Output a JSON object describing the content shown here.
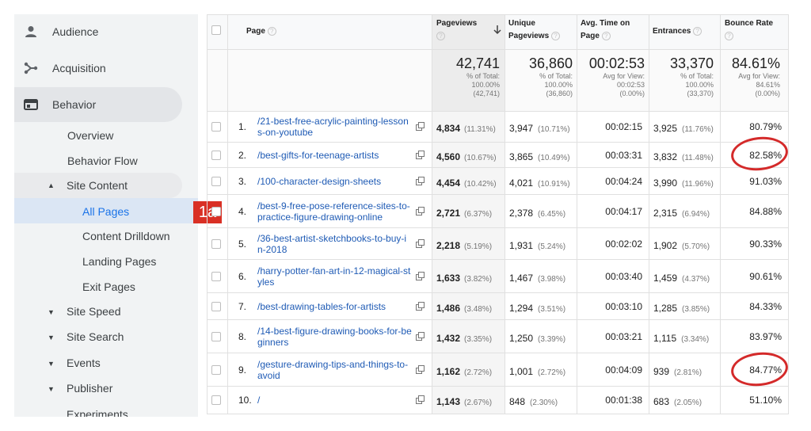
{
  "sidebar": {
    "top_items": [
      {
        "label": "Audience",
        "icon": "person-icon"
      },
      {
        "label": "Acquisition",
        "icon": "acquisition-icon"
      },
      {
        "label": "Behavior",
        "icon": "behavior-icon"
      }
    ],
    "behavior_children": {
      "overview": "Overview",
      "behavior_flow": "Behavior Flow",
      "site_content": "Site Content",
      "site_content_children": [
        "All Pages",
        "Content Drilldown",
        "Landing Pages",
        "Exit Pages"
      ],
      "site_speed": "Site Speed",
      "site_search": "Site Search",
      "events": "Events",
      "publisher": "Publisher",
      "experiments": "Experiments"
    }
  },
  "badge": "1a",
  "table": {
    "headers": {
      "page": "Page",
      "pageviews": "Pageviews",
      "unique_1": "Unique",
      "unique_2": "Pageviews",
      "avg_1": "Avg. Time on",
      "avg_2": "Page",
      "entrances": "Entrances",
      "bounce": "Bounce Rate"
    },
    "totals": {
      "pageviews": {
        "value": "42,741",
        "l1": "% of Total:",
        "l2": "100.00%",
        "l3": "(42,741)"
      },
      "unique": {
        "value": "36,860",
        "l1": "% of Total:",
        "l2": "100.00%",
        "l3": "(36,860)"
      },
      "avg": {
        "value": "00:02:53",
        "l1": "Avg for View:",
        "l2": "00:02:53",
        "l3": "(0.00%)"
      },
      "entrances": {
        "value": "33,370",
        "l1": "% of Total:",
        "l2": "100.00%",
        "l3": "(33,370)"
      },
      "bounce": {
        "value": "84.61%",
        "l1": "Avg for View:",
        "l2": "84.61%",
        "l3": "(0.00%)"
      }
    },
    "rows": [
      {
        "n": "1.",
        "page": "/21-best-free-acrylic-painting-lesson",
        "page2": "s-on-youtube",
        "pv": "4,834",
        "pvp": "(11.31%)",
        "uv": "3,947",
        "uvp": "(10.71%)",
        "avg": "00:02:15",
        "en": "3,925",
        "enp": "(11.76%)",
        "br": "80.79%"
      },
      {
        "n": "2.",
        "page": "/best-gifts-for-teenage-artists",
        "page2": "",
        "pv": "4,560",
        "pvp": "(10.67%)",
        "uv": "3,865",
        "uvp": "(10.49%)",
        "avg": "00:03:31",
        "en": "3,832",
        "enp": "(11.48%)",
        "br": "82.58%"
      },
      {
        "n": "3.",
        "page": "/100-character-design-sheets",
        "page2": "",
        "pv": "4,454",
        "pvp": "(10.42%)",
        "uv": "4,021",
        "uvp": "(10.91%)",
        "avg": "00:04:24",
        "en": "3,990",
        "enp": "(11.96%)",
        "br": "91.03%"
      },
      {
        "n": "4.",
        "page": "/best-9-free-pose-reference-sites-to-",
        "page2": "practice-figure-drawing-online",
        "pv": "2,721",
        "pvp": "(6.37%)",
        "uv": "2,378",
        "uvp": "(6.45%)",
        "avg": "00:04:17",
        "en": "2,315",
        "enp": "(6.94%)",
        "br": "84.88%"
      },
      {
        "n": "5.",
        "page": "/36-best-artist-sketchbooks-to-buy-i",
        "page2": "n-2018",
        "pv": "2,218",
        "pvp": "(5.19%)",
        "uv": "1,931",
        "uvp": "(5.24%)",
        "avg": "00:02:02",
        "en": "1,902",
        "enp": "(5.70%)",
        "br": "90.33%"
      },
      {
        "n": "6.",
        "page": "/harry-potter-fan-art-in-12-magical-st",
        "page2": "yles",
        "pv": "1,633",
        "pvp": "(3.82%)",
        "uv": "1,467",
        "uvp": "(3.98%)",
        "avg": "00:03:40",
        "en": "1,459",
        "enp": "(4.37%)",
        "br": "90.61%"
      },
      {
        "n": "7.",
        "page": "/best-drawing-tables-for-artists",
        "page2": "",
        "pv": "1,486",
        "pvp": "(3.48%)",
        "uv": "1,294",
        "uvp": "(3.51%)",
        "avg": "00:03:10",
        "en": "1,285",
        "enp": "(3.85%)",
        "br": "84.33%"
      },
      {
        "n": "8.",
        "page": "/14-best-figure-drawing-books-for-be",
        "page2": "ginners",
        "pv": "1,432",
        "pvp": "(3.35%)",
        "uv": "1,250",
        "uvp": "(3.39%)",
        "avg": "00:03:21",
        "en": "1,115",
        "enp": "(3.34%)",
        "br": "83.97%"
      },
      {
        "n": "9.",
        "page": "/gesture-drawing-tips-and-things-to-",
        "page2": "avoid",
        "pv": "1,162",
        "pvp": "(2.72%)",
        "uv": "1,001",
        "uvp": "(2.72%)",
        "avg": "00:04:09",
        "en": "939",
        "enp": "(2.81%)",
        "br": "84.77%"
      },
      {
        "n": "10.",
        "page": "/",
        "page2": "",
        "pv": "1,143",
        "pvp": "(2.67%)",
        "uv": "848",
        "uvp": "(2.30%)",
        "avg": "00:01:38",
        "en": "683",
        "enp": "(2.05%)",
        "br": "51.10%"
      }
    ],
    "highlight_color": "#d42a2a"
  }
}
